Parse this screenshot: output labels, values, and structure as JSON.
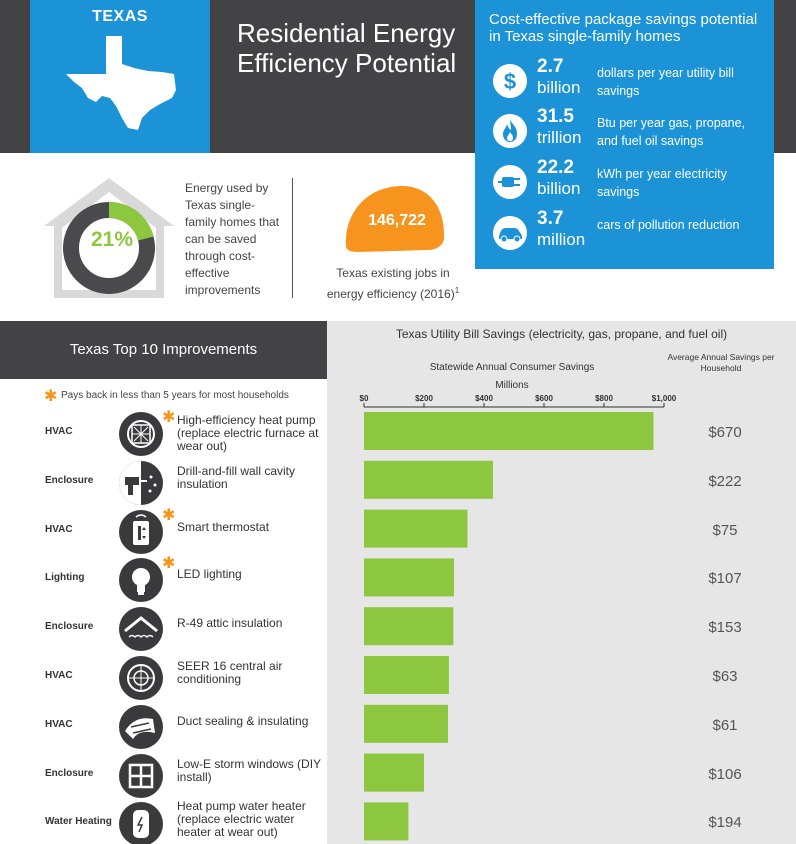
{
  "header": {
    "state": "TEXAS",
    "title": "Residential Energy Efficiency Potential"
  },
  "stats": {
    "title": "Cost-effective package savings potential in Texas single-family homes",
    "items": [
      {
        "number": "2.7",
        "unit": "billion",
        "description": "dollars per year utility bill savings",
        "icon": "dollar-icon"
      },
      {
        "number": "31.5",
        "unit": "trillion",
        "description": "Btu per year gas, propane, and fuel oil savings",
        "icon": "flame-icon"
      },
      {
        "number": "22.2",
        "unit": "billion",
        "description": "kWh per year electricity savings",
        "icon": "plug-icon"
      },
      {
        "number": "3.7",
        "unit": "million",
        "description": "cars of pollution reduction",
        "icon": "car-icon"
      }
    ]
  },
  "energy_saved": {
    "percent": "21%",
    "fraction": 0.21,
    "description": "Energy used by Texas single-family homes that can be saved through cost-effective improvements"
  },
  "jobs": {
    "number": "146,722",
    "description": "Texas existing jobs in energy efficiency (2016)",
    "footnote": "1"
  },
  "improvements": {
    "title": "Texas Top 10 Improvements",
    "note": "Pays back in less than 5 years for most households"
  },
  "colors": {
    "accent_blue": "#1b93d6",
    "dark_grey": "#434345",
    "bar_green": "#8dc63f",
    "star_orange": "#f7941d",
    "hardhat_orange": "#f7941d"
  },
  "chart_data": {
    "type": "bar",
    "orientation": "horizontal",
    "title": "Texas Utility Bill Savings (electricity, gas, propane, and fuel oil)",
    "subtitle": "Statewide Annual Consumer Savings",
    "xlabel": "Millions",
    "xlim": [
      0,
      1000
    ],
    "xticks": [
      "$0",
      "$200",
      "$400",
      "$600",
      "$800",
      "$1,000"
    ],
    "xtick_values": [
      0,
      200,
      400,
      600,
      800,
      1000
    ],
    "avg_header": "Average Annual Savings per Household",
    "categories": [
      {
        "type": "HVAC",
        "label": "High-efficiency heat pump (replace electric furnace at wear out)",
        "star": true,
        "icon": "heat-pump-icon"
      },
      {
        "type": "Enclosure",
        "label": "Drill-and-fill wall cavity insulation",
        "star": false,
        "icon": "drill-icon"
      },
      {
        "type": "HVAC",
        "label": "Smart thermostat",
        "star": true,
        "icon": "thermostat-icon"
      },
      {
        "type": "Lighting",
        "label": "LED lighting",
        "star": true,
        "icon": "lightbulb-icon"
      },
      {
        "type": "Enclosure",
        "label": "R-49 attic insulation",
        "star": false,
        "icon": "attic-icon"
      },
      {
        "type": "HVAC",
        "label": "SEER 16 central air conditioning",
        "star": false,
        "icon": "ac-unit-icon"
      },
      {
        "type": "HVAC",
        "label": "Duct sealing & insulating",
        "star": false,
        "icon": "duct-icon"
      },
      {
        "type": "Enclosure",
        "label": "Low-E storm windows (DIY install)",
        "star": false,
        "icon": "window-icon"
      },
      {
        "type": "Water Heating",
        "label": "Heat pump water heater (replace electric water heater at wear out)",
        "star": false,
        "icon": "water-heater-icon"
      }
    ],
    "values": [
      965,
      430,
      345,
      300,
      298,
      283,
      280,
      200,
      148
    ],
    "avg_savings": [
      "$670",
      "$222",
      "$75",
      "$107",
      "$153",
      "$63",
      "$61",
      "$106",
      "$194"
    ]
  }
}
